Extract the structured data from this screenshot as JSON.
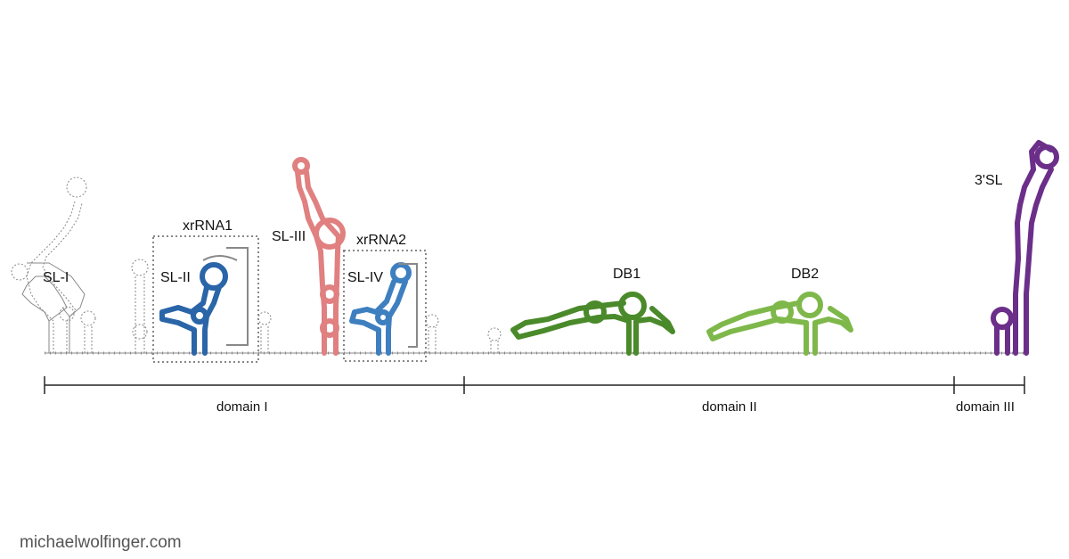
{
  "labels": {
    "sl1": "SL-I",
    "sl2": "SL-II",
    "sl3": "SL-III",
    "sl4": "SL-IV",
    "xr1": "xrRNA1",
    "xr2": "xrRNA2",
    "db1": "DB1",
    "db2": "DB2",
    "sl3p": "3'SL"
  },
  "domains": {
    "d1": "domain I",
    "d2": "domain II",
    "d3": "domain III"
  },
  "credit": "michaelwolfinger.com",
  "colors": {
    "unstructured": "#888888",
    "sl2": "#2a65a8",
    "sl3": "#e08080",
    "sl4": "#3e7fc0",
    "db1": "#4a8a2a",
    "db2": "#7fb84a",
    "sl3prime": "#6b2f8a",
    "box": "#888888",
    "scale": "#222222"
  }
}
